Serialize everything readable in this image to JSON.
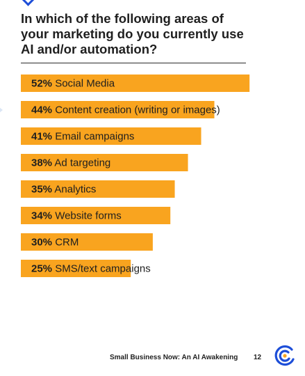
{
  "title": "In which of the following areas of your marketing do you currently use AI and/or automation?",
  "footer": {
    "text": "Small Business Now: An AI Awakening",
    "page": "12"
  },
  "colors": {
    "bar": "#F9A41F",
    "text": "#1F1F1F",
    "logo_blue": "#1D4ED8",
    "logo_orange": "#F9A41F"
  },
  "chart_data": {
    "type": "bar",
    "orientation": "horizontal",
    "title": "In which of the following areas of your marketing do you currently use AI and/or automation?",
    "unit": "%",
    "categories": [
      "Social Media",
      "Content creation (writing or images)",
      "Email campaigns",
      "Ad targeting",
      "Analytics",
      "Website forms",
      "CRM",
      "SMS/text campaigns"
    ],
    "values": [
      52,
      44,
      41,
      38,
      35,
      34,
      30,
      25
    ],
    "labels": [
      "52%",
      "44%",
      "41%",
      "38%",
      "35%",
      "34%",
      "30%",
      "25%"
    ],
    "grid": false,
    "legend": "none"
  }
}
